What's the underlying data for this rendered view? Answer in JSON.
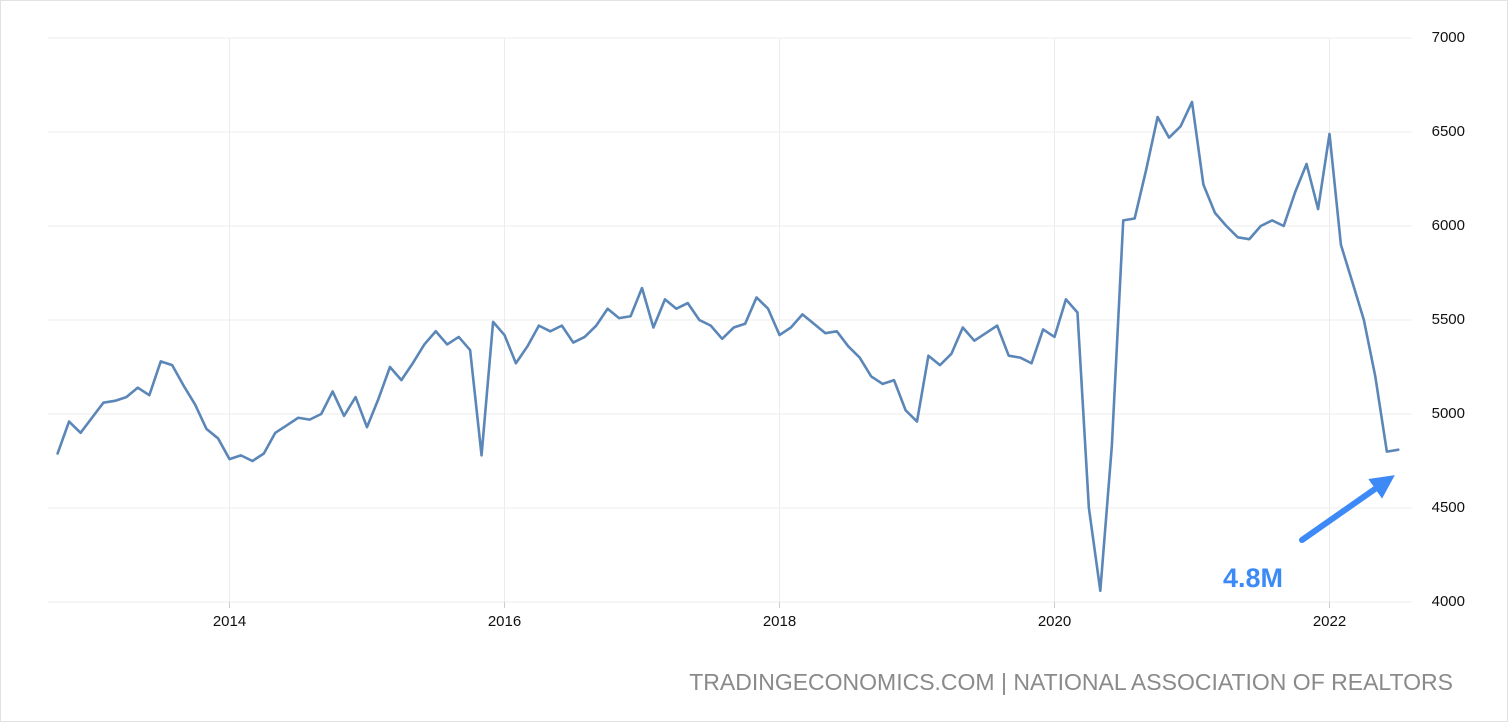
{
  "chart_data": {
    "type": "line",
    "x": [
      2012.75,
      2012.833,
      2012.917,
      2013,
      2013.083,
      2013.167,
      2013.25,
      2013.333,
      2013.417,
      2013.5,
      2013.583,
      2013.667,
      2013.75,
      2013.833,
      2013.917,
      2014,
      2014.083,
      2014.167,
      2014.25,
      2014.333,
      2014.417,
      2014.5,
      2014.583,
      2014.667,
      2014.75,
      2014.833,
      2014.917,
      2015,
      2015.083,
      2015.167,
      2015.25,
      2015.333,
      2015.417,
      2015.5,
      2015.583,
      2015.667,
      2015.75,
      2015.833,
      2015.917,
      2016,
      2016.083,
      2016.167,
      2016.25,
      2016.333,
      2016.417,
      2016.5,
      2016.583,
      2016.667,
      2016.75,
      2016.833,
      2016.917,
      2017,
      2017.083,
      2017.167,
      2017.25,
      2017.333,
      2017.417,
      2017.5,
      2017.583,
      2017.667,
      2017.75,
      2017.833,
      2017.917,
      2018,
      2018.083,
      2018.167,
      2018.25,
      2018.333,
      2018.417,
      2018.5,
      2018.583,
      2018.667,
      2018.75,
      2018.833,
      2018.917,
      2019,
      2019.083,
      2019.167,
      2019.25,
      2019.333,
      2019.417,
      2019.5,
      2019.583,
      2019.667,
      2019.75,
      2019.833,
      2019.917,
      2020,
      2020.083,
      2020.167,
      2020.25,
      2020.333,
      2020.417,
      2020.5,
      2020.583,
      2020.667,
      2020.75,
      2020.833,
      2020.917,
      2021,
      2021.083,
      2021.167,
      2021.25,
      2021.333,
      2021.417,
      2021.5,
      2021.583,
      2021.667,
      2021.75,
      2021.833,
      2021.917,
      2022,
      2022.083,
      2022.167,
      2022.25,
      2022.333,
      2022.417,
      2022.5
    ],
    "series": [
      {
        "color": "#5b86b8",
        "values": [
          4790,
          4960,
          4900,
          4980,
          5060,
          5070,
          5090,
          5140,
          5100,
          5280,
          5260,
          5150,
          5050,
          4920,
          4870,
          4760,
          4780,
          4750,
          4790,
          4900,
          4940,
          4980,
          4970,
          5000,
          5120,
          4990,
          5090,
          4930,
          5080,
          5250,
          5180,
          5270,
          5370,
          5440,
          5370,
          5410,
          5340,
          4780,
          5490,
          5420,
          5270,
          5360,
          5470,
          5440,
          5470,
          5380,
          5410,
          5470,
          5560,
          5510,
          5520,
          5670,
          5460,
          5610,
          5560,
          5590,
          5500,
          5470,
          5400,
          5460,
          5480,
          5620,
          5560,
          5420,
          5460,
          5530,
          5480,
          5430,
          5440,
          5360,
          5300,
          5200,
          5160,
          5180,
          5020,
          4960,
          5310,
          5260,
          5320,
          5460,
          5390,
          5430,
          5470,
          5310,
          5300,
          5270,
          5450,
          5410,
          5610,
          5540,
          4500,
          4060,
          4830,
          6030,
          6040,
          6300,
          6580,
          6470,
          6530,
          6660,
          6220,
          6070,
          6000,
          5940,
          5930,
          6000,
          6030,
          6000,
          6180,
          6330,
          6090,
          6490,
          5900,
          5700,
          5500,
          5200,
          4800,
          4810
        ]
      }
    ],
    "xlim": [
      2012.68,
      2022.6
    ],
    "xticks": [
      2014,
      2016,
      2018,
      2020,
      2022
    ],
    "ylim": [
      4000,
      7000
    ],
    "yticks": [
      4000,
      4500,
      5000,
      5500,
      6000,
      6500,
      7000
    ],
    "grid": true,
    "annotation": "4.8M",
    "source": "TRADINGECONOMICS.COM | NATIONAL ASSOCIATION OF REALTORS"
  }
}
